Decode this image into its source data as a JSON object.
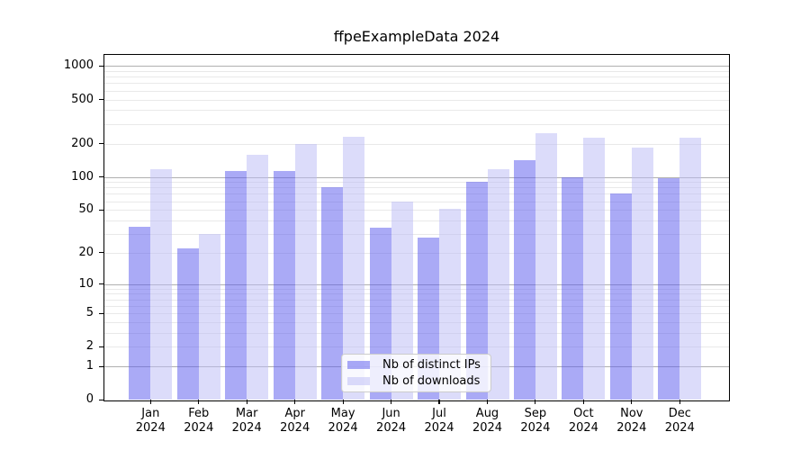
{
  "figure": {
    "background": "#ffffff"
  },
  "chart_data": {
    "type": "bar",
    "title": "ffpeExampleData 2024",
    "categories": [
      "Jan 2024",
      "Feb 2024",
      "Mar 2024",
      "Apr 2024",
      "May 2024",
      "Jun 2024",
      "Jul 2024",
      "Aug 2024",
      "Sep 2024",
      "Oct 2024",
      "Nov 2024",
      "Dec 2024"
    ],
    "series": [
      {
        "name": "Nb of distinct IPs",
        "color": "#5555ED80",
        "values": [
          35,
          22,
          114,
          113,
          80,
          34,
          28,
          90,
          142,
          100,
          70,
          98
        ]
      },
      {
        "name": "Nb of downloads",
        "color": "#BABAF680",
        "values": [
          117,
          30,
          158,
          198,
          231,
          60,
          51,
          118,
          250,
          225,
          183,
          227
        ]
      }
    ],
    "xlabel": "",
    "ylabel": "",
    "yscale": "log1p",
    "yticks": [
      0,
      1,
      2,
      5,
      10,
      20,
      50,
      100,
      200,
      500,
      1000
    ],
    "ylim": [
      0,
      1250
    ],
    "grid": "both",
    "legend_position": "lower center"
  }
}
